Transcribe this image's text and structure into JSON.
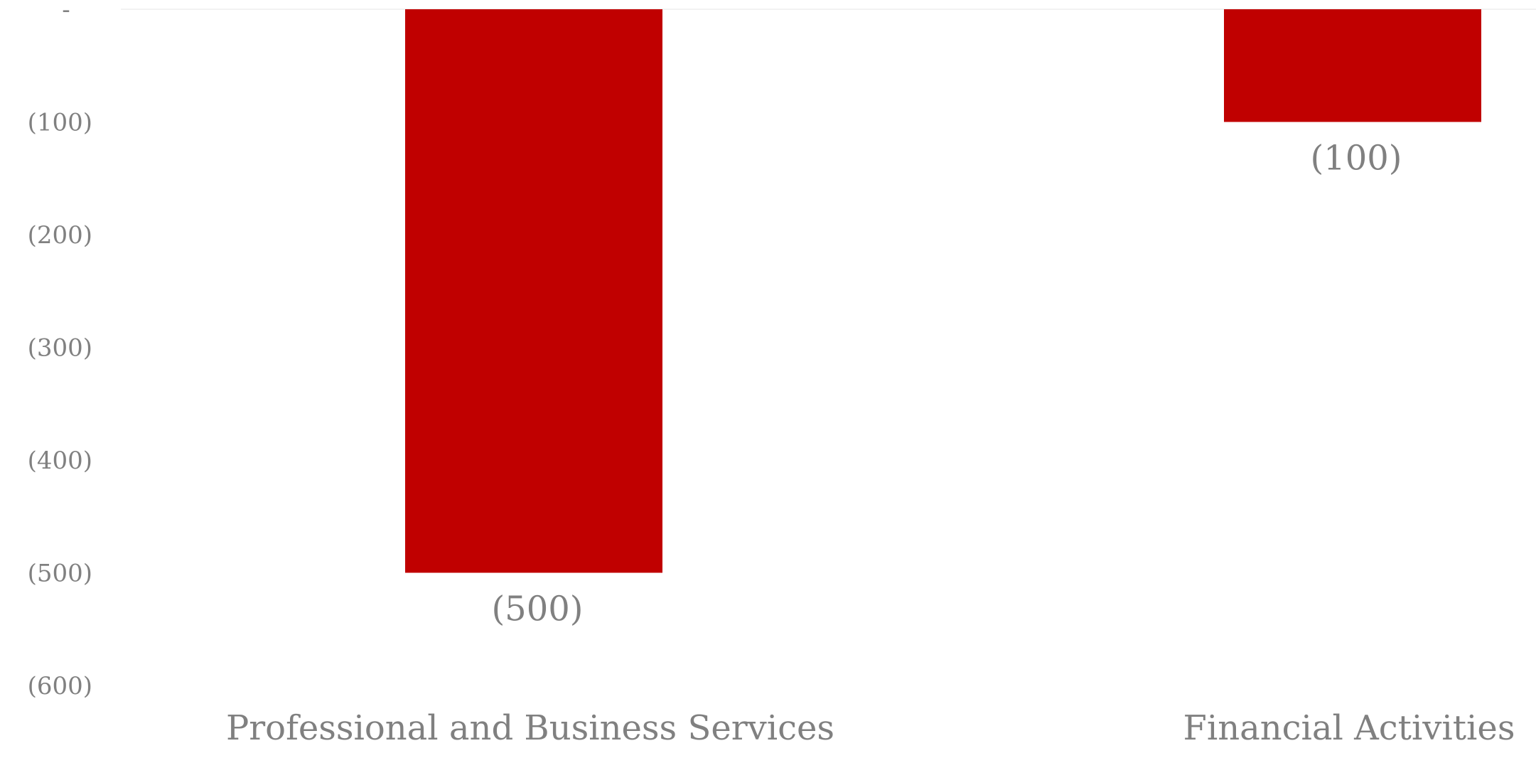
{
  "chart_data": {
    "type": "bar",
    "categories": [
      "Professional and Business Services",
      "Financial Activities"
    ],
    "values": [
      -500,
      -100
    ],
    "data_labels": [
      "(500)",
      "(100)"
    ],
    "title": "",
    "xlabel": "",
    "ylabel": "",
    "ylim": [
      -600,
      0
    ],
    "yticks": [
      {
        "value": 0,
        "label": "-"
      },
      {
        "value": -100,
        "label": "(100)"
      },
      {
        "value": -200,
        "label": "(200)"
      },
      {
        "value": -300,
        "label": "(300)"
      },
      {
        "value": -400,
        "label": "(400)"
      },
      {
        "value": -500,
        "label": "(500)"
      },
      {
        "value": -600,
        "label": "(600)"
      }
    ],
    "grid": false,
    "legend": "none",
    "bar_color": "#C00000",
    "text_color": "#808080",
    "axis_line_color": "#F2F2F2"
  }
}
